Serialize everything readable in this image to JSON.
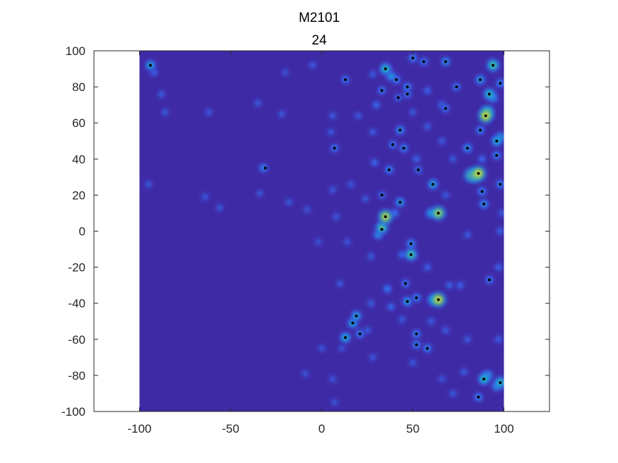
{
  "chart_data": {
    "type": "heatmap",
    "title": "M2101",
    "subtitle": "24",
    "xlabel": "",
    "ylabel": "",
    "xlim": [
      -125,
      125
    ],
    "ylim": [
      -100,
      100
    ],
    "heatmap_extent": {
      "x": [
        -100,
        100
      ],
      "y": [
        -100,
        100
      ]
    },
    "xticks": [
      -100,
      -50,
      0,
      50,
      100
    ],
    "yticks": [
      -100,
      -80,
      -60,
      -40,
      -20,
      0,
      20,
      40,
      60,
      80,
      100
    ],
    "grid": false,
    "colormap": "parula",
    "colors": {
      "background": "#3f2aa6",
      "mid": "#2fb7c5",
      "high": "#f9e22a"
    },
    "marker_points": [
      [
        -94,
        92
      ],
      [
        13,
        84
      ],
      [
        35,
        90
      ],
      [
        50,
        96
      ],
      [
        56,
        94
      ],
      [
        68,
        94
      ],
      [
        94,
        92
      ],
      [
        41,
        84
      ],
      [
        33,
        78
      ],
      [
        47,
        80
      ],
      [
        47,
        76
      ],
      [
        42,
        74
      ],
      [
        74,
        80
      ],
      [
        87,
        84
      ],
      [
        98,
        82
      ],
      [
        92,
        76
      ],
      [
        68,
        68
      ],
      [
        90,
        64
      ],
      [
        87,
        56
      ],
      [
        43,
        56
      ],
      [
        96,
        50
      ],
      [
        7,
        46
      ],
      [
        39,
        48
      ],
      [
        45,
        46
      ],
      [
        80,
        46
      ],
      [
        96,
        42
      ],
      [
        -31,
        35
      ],
      [
        37,
        34
      ],
      [
        53,
        34
      ],
      [
        86,
        32
      ],
      [
        61,
        26
      ],
      [
        98,
        26
      ],
      [
        88,
        22
      ],
      [
        33,
        20
      ],
      [
        43,
        16
      ],
      [
        89,
        15
      ],
      [
        64,
        10
      ],
      [
        35,
        8
      ],
      [
        33,
        1
      ],
      [
        49,
        -7
      ],
      [
        49,
        -13
      ],
      [
        92,
        -27
      ],
      [
        46,
        -29
      ],
      [
        52,
        -37
      ],
      [
        64,
        -38
      ],
      [
        47,
        -39
      ],
      [
        19,
        -47
      ],
      [
        17,
        -51
      ],
      [
        21,
        -57
      ],
      [
        52,
        -57
      ],
      [
        13,
        -59
      ],
      [
        52,
        -63
      ],
      [
        58,
        -65
      ],
      [
        89,
        -82
      ],
      [
        98,
        -84
      ],
      [
        86,
        -92
      ]
    ],
    "blobs": [
      [
        -94,
        92,
        0.45
      ],
      [
        -92,
        88,
        0.18
      ],
      [
        -88,
        76,
        0.16
      ],
      [
        -86,
        66,
        0.16
      ],
      [
        -95,
        26,
        0.15
      ],
      [
        -62,
        66,
        0.15
      ],
      [
        -64,
        19,
        0.15
      ],
      [
        -56,
        13,
        0.15
      ],
      [
        -35,
        71,
        0.15
      ],
      [
        -32,
        35,
        0.3
      ],
      [
        -34,
        21,
        0.14
      ],
      [
        -22,
        65,
        0.15
      ],
      [
        -20,
        88,
        0.14
      ],
      [
        -18,
        16,
        0.15
      ],
      [
        -8,
        12,
        0.14
      ],
      [
        -5,
        92,
        0.16
      ],
      [
        -2,
        -6,
        0.14
      ],
      [
        -9,
        -79,
        0.14
      ],
      [
        6,
        64,
        0.15
      ],
      [
        5,
        55,
        0.15
      ],
      [
        7,
        46,
        0.25
      ],
      [
        6,
        23,
        0.15
      ],
      [
        8,
        8,
        0.15
      ],
      [
        10,
        -29,
        0.15
      ],
      [
        11,
        -65,
        0.13
      ],
      [
        0,
        -65,
        0.14
      ],
      [
        7,
        -95,
        0.14
      ],
      [
        6,
        -82,
        0.14
      ],
      [
        13,
        84,
        0.25
      ],
      [
        16,
        26,
        0.14
      ],
      [
        14,
        -6,
        0.14
      ],
      [
        13,
        -59,
        0.5
      ],
      [
        17,
        -51,
        0.45
      ],
      [
        19,
        -47,
        0.45
      ],
      [
        21,
        -57,
        0.3
      ],
      [
        25,
        -55,
        0.16
      ],
      [
        20,
        64,
        0.15
      ],
      [
        24,
        18,
        0.15
      ],
      [
        28,
        87,
        0.16
      ],
      [
        30,
        70,
        0.2
      ],
      [
        28,
        55,
        0.16
      ],
      [
        29,
        38,
        0.2
      ],
      [
        27,
        -14,
        0.16
      ],
      [
        27,
        -40,
        0.16
      ],
      [
        28,
        -70,
        0.14
      ],
      [
        33,
        78,
        0.25
      ],
      [
        35,
        90,
        0.6
      ],
      [
        38,
        86,
        0.4
      ],
      [
        37,
        34,
        0.3
      ],
      [
        33,
        20,
        0.2
      ],
      [
        35,
        8,
        0.95
      ],
      [
        33,
        2,
        0.7
      ],
      [
        31,
        -2,
        0.35
      ],
      [
        36,
        -32,
        0.25
      ],
      [
        38,
        -42,
        0.2
      ],
      [
        41,
        84,
        0.3
      ],
      [
        42,
        74,
        0.2
      ],
      [
        39,
        48,
        0.25
      ],
      [
        43,
        56,
        0.35
      ],
      [
        45,
        46,
        0.3
      ],
      [
        43,
        16,
        0.4
      ],
      [
        40,
        10,
        0.25
      ],
      [
        44,
        -13,
        0.2
      ],
      [
        46,
        -29,
        0.25
      ],
      [
        47,
        -39,
        0.4
      ],
      [
        44,
        -49,
        0.16
      ],
      [
        47,
        80,
        0.3
      ],
      [
        47,
        76,
        0.25
      ],
      [
        50,
        96,
        0.3
      ],
      [
        50,
        66,
        0.15
      ],
      [
        52,
        40,
        0.18
      ],
      [
        53,
        34,
        0.22
      ],
      [
        49,
        -7,
        0.35
      ],
      [
        49,
        -13,
        0.7
      ],
      [
        52,
        -37,
        0.3
      ],
      [
        52,
        -57,
        0.3
      ],
      [
        52,
        -63,
        0.3
      ],
      [
        50,
        -73,
        0.15
      ],
      [
        56,
        94,
        0.25
      ],
      [
        58,
        78,
        0.18
      ],
      [
        61,
        26,
        0.45
      ],
      [
        58,
        58,
        0.16
      ],
      [
        60,
        10,
        0.45
      ],
      [
        64,
        10,
        0.9
      ],
      [
        58,
        -20,
        0.18
      ],
      [
        58,
        -65,
        0.3
      ],
      [
        60,
        -50,
        0.16
      ],
      [
        64,
        -38,
        1.0
      ],
      [
        61,
        -38,
        0.5
      ],
      [
        68,
        94,
        0.35
      ],
      [
        66,
        70,
        0.2
      ],
      [
        68,
        68,
        0.25
      ],
      [
        66,
        50,
        0.16
      ],
      [
        68,
        20,
        0.16
      ],
      [
        70,
        -30,
        0.18
      ],
      [
        68,
        -55,
        0.16
      ],
      [
        66,
        -82,
        0.14
      ],
      [
        74,
        80,
        0.25
      ],
      [
        72,
        40,
        0.16
      ],
      [
        76,
        -30,
        0.18
      ],
      [
        72,
        -90,
        0.15
      ],
      [
        80,
        46,
        0.35
      ],
      [
        82,
        31,
        0.85
      ],
      [
        84,
        31,
        0.9
      ],
      [
        80,
        -2,
        0.16
      ],
      [
        80,
        -60,
        0.16
      ],
      [
        78,
        -78,
        0.16
      ],
      [
        86,
        32,
        1.0
      ],
      [
        87,
        84,
        0.4
      ],
      [
        87,
        56,
        0.3
      ],
      [
        88,
        22,
        0.3
      ],
      [
        89,
        15,
        0.35
      ],
      [
        86,
        -92,
        0.3
      ],
      [
        90,
        64,
        1.0
      ],
      [
        91,
        66,
        0.8
      ],
      [
        94,
        92,
        0.7
      ],
      [
        92,
        76,
        0.6
      ],
      [
        94,
        74,
        0.4
      ],
      [
        92,
        -27,
        0.25
      ],
      [
        89,
        -82,
        0.6
      ],
      [
        91,
        -80,
        0.45
      ],
      [
        88,
        40,
        0.2
      ],
      [
        96,
        50,
        0.5
      ],
      [
        98,
        52,
        0.45
      ],
      [
        96,
        42,
        0.3
      ],
      [
        98,
        82,
        0.3
      ],
      [
        98,
        26,
        0.3
      ],
      [
        98,
        -84,
        0.6
      ],
      [
        96,
        -86,
        0.4
      ],
      [
        98,
        0,
        0.18
      ],
      [
        97,
        -20,
        0.18
      ],
      [
        97,
        -60,
        0.16
      ],
      [
        99,
        10,
        0.16
      ]
    ]
  }
}
